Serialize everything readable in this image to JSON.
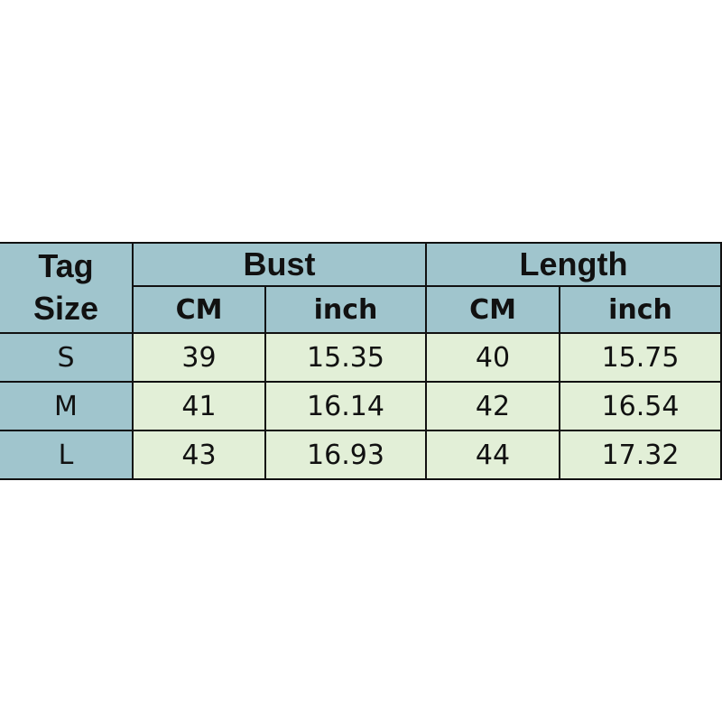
{
  "header": {
    "tag_line1": "Tag",
    "tag_line2": "Size",
    "bust": "Bust",
    "length": "Length",
    "sub": [
      "CM",
      "inch",
      "CM",
      "inch"
    ]
  },
  "rows": [
    {
      "size": "S",
      "bust_cm": "39",
      "bust_inch": "15.35",
      "length_cm": "40",
      "length_inch": "15.75"
    },
    {
      "size": "M",
      "bust_cm": "41",
      "bust_inch": "16.14",
      "length_cm": "42",
      "length_inch": "16.54"
    },
    {
      "size": "L",
      "bust_cm": "43",
      "bust_inch": "16.93",
      "length_cm": "44",
      "length_inch": "17.32"
    }
  ],
  "colors": {
    "header": "#a0c5cd",
    "cell": "#e2efd7"
  }
}
